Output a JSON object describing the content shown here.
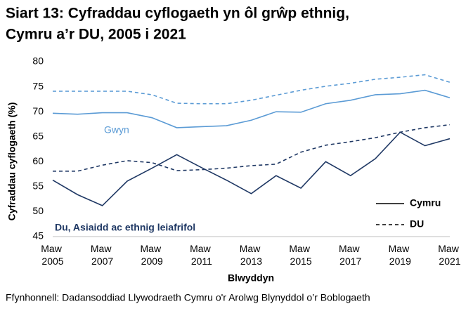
{
  "chart_data": {
    "type": "line",
    "title": [
      "Siart 13: Cyfraddau cyflogaeth yn ôl grŵp ethnig,",
      "Cymru a’r DU, 2005 i 2021"
    ],
    "ylabel": "Cyfraddau cyflogaeth (%)",
    "xlabel": "Blwyddyn",
    "source": "Ffynhonnell: Dadansoddiad Llywodraeth Cymru o'r Arolwg Blynyddol o’r Boblogaeth",
    "categories": [
      "Maw 2005",
      null,
      "Maw 2007",
      null,
      "Maw 2009",
      null,
      "Maw 2011",
      null,
      "Maw 2013",
      null,
      "Maw 2015",
      null,
      "Maw 2017",
      null,
      "Maw 2019",
      null,
      "Maw 2021"
    ],
    "ylim": [
      45,
      80
    ],
    "yticks": [
      45,
      50,
      55,
      60,
      65,
      70,
      75,
      80
    ],
    "groups": [
      {
        "label": "Gwyn",
        "color": "#5b9bd5"
      },
      {
        "label": "Du, Asiaidd ac ethnig leiafrifol",
        "color": "#1f3864"
      }
    ],
    "legend": [
      {
        "name": "Cymru",
        "dash": "solid"
      },
      {
        "name": "DU",
        "dash": "dashed"
      }
    ],
    "series": [
      {
        "group": 0,
        "legend": 0,
        "values": [
          69.7,
          69.5,
          69.8,
          69.8,
          68.8,
          66.8,
          67.0,
          67.2,
          68.3,
          70.0,
          69.9,
          71.6,
          72.3,
          73.4,
          73.6,
          74.3,
          72.8
        ]
      },
      {
        "group": 0,
        "legend": 1,
        "values": [
          74.1,
          74.1,
          74.1,
          74.1,
          73.4,
          71.7,
          71.6,
          71.6,
          72.3,
          73.3,
          74.3,
          75.1,
          75.7,
          76.5,
          76.9,
          77.4,
          75.9
        ]
      },
      {
        "group": 1,
        "legend": 0,
        "values": [
          56.3,
          53.4,
          51.2,
          56.1,
          58.7,
          61.4,
          58.8,
          56.3,
          53.6,
          57.2,
          54.7,
          60.0,
          57.2,
          60.6,
          65.9,
          63.2,
          64.6
        ]
      },
      {
        "group": 1,
        "legend": 1,
        "values": [
          58.1,
          58.1,
          59.3,
          60.2,
          59.8,
          58.2,
          58.4,
          58.7,
          59.2,
          59.5,
          61.9,
          63.3,
          64.0,
          64.8,
          65.9,
          66.8,
          67.4
        ]
      }
    ]
  }
}
